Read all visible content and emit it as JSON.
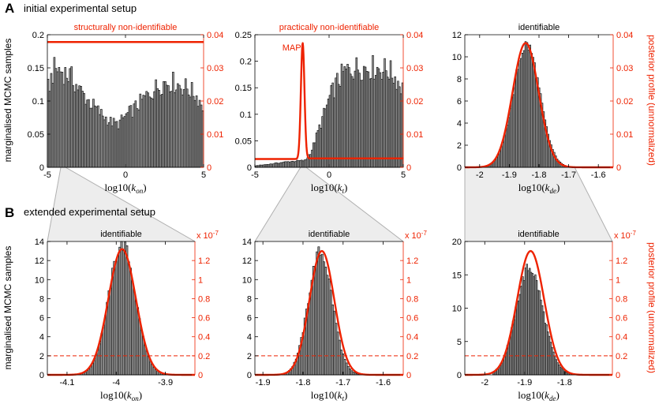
{
  "figure": {
    "sections": [
      {
        "letter": "A",
        "caption": "initial experimental setup"
      },
      {
        "letter": "B",
        "caption": "extended experimental setup"
      }
    ],
    "left_ylabel": "marginalised MCMC samples",
    "right_ylabel": "posterior profile (unnormalized)",
    "map_label": "MAP",
    "colors": {
      "bars_fill": "#9a9a9a",
      "bars_edge": "#000000",
      "profile": "#ee2200",
      "zoom_fill": "#ededed",
      "zoom_edge": "#b0b0b0"
    }
  },
  "chart_data": [
    {
      "id": "A1",
      "type": "bar+line",
      "title": "structurally non-identifiable",
      "title_color": "#ee2200",
      "xlabel_prefix": "log10(",
      "xlabel_var": "k",
      "xlabel_sub": "on",
      "xlabel_suffix": ")",
      "xlim": [
        -5,
        5
      ],
      "xticks": [
        "-5",
        "0",
        "5"
      ],
      "ylim": [
        0,
        0.2
      ],
      "yticks": [
        "0",
        "0.05",
        "0.1",
        "0.15",
        "0.2"
      ],
      "y2lim": [
        0,
        0.04
      ],
      "y2ticks": [
        "0",
        "0.01",
        "0.02",
        "0.03",
        "0.04"
      ],
      "histogram": {
        "nbins": 100,
        "range": [
          -5,
          5
        ],
        "peak_heights": [
          [
            -4.95,
            0.12
          ],
          [
            -4.6,
            0.148
          ],
          [
            -4.4,
            0.15
          ],
          [
            -4.0,
            0.146
          ],
          [
            -3.5,
            0.138
          ],
          [
            -3.0,
            0.12
          ],
          [
            -2.5,
            0.105
          ],
          [
            -2.0,
            0.092
          ],
          [
            -1.5,
            0.08
          ],
          [
            -1.0,
            0.07
          ],
          [
            -0.5,
            0.065
          ],
          [
            0.0,
            0.078
          ],
          [
            0.5,
            0.088
          ],
          [
            1.0,
            0.1
          ],
          [
            1.5,
            0.112
          ],
          [
            2.0,
            0.122
          ],
          [
            2.5,
            0.13
          ],
          [
            3.0,
            0.13
          ],
          [
            3.5,
            0.125
          ],
          [
            4.0,
            0.12
          ],
          [
            4.5,
            0.11
          ],
          [
            4.95,
            0.095
          ]
        ]
      },
      "profile": {
        "x": [
          -5,
          5
        ],
        "y": [
          0.0378,
          0.0378
        ]
      }
    },
    {
      "id": "A2",
      "type": "bar+line",
      "title": "practically non-identifiable",
      "title_color": "#ee2200",
      "xlabel_prefix": "log10(",
      "xlabel_var": "k",
      "xlabel_sub": "t",
      "xlabel_suffix": ")",
      "xlim": [
        -5,
        5
      ],
      "xticks": [
        "-5",
        "0",
        "5"
      ],
      "ylim": [
        0,
        0.25
      ],
      "yticks": [
        "0",
        "0.05",
        "0.1",
        "0.15",
        "0.2",
        "0.25"
      ],
      "y2lim": [
        0,
        0.04
      ],
      "y2ticks": [
        "0",
        "0.01",
        "0.02",
        "0.03",
        "0.04"
      ],
      "histogram": {
        "nbins": 100,
        "range": [
          -5,
          5
        ],
        "peak_heights": [
          [
            -4.95,
            0.003
          ],
          [
            -4.0,
            0.006
          ],
          [
            -3.0,
            0.01
          ],
          [
            -2.2,
            0.012
          ],
          [
            -1.6,
            0.013
          ],
          [
            -1.2,
            0.03
          ],
          [
            -0.6,
            0.08
          ],
          [
            0.0,
            0.13
          ],
          [
            0.5,
            0.16
          ],
          [
            1.0,
            0.18
          ],
          [
            1.5,
            0.188
          ],
          [
            2.0,
            0.19
          ],
          [
            2.5,
            0.19
          ],
          [
            3.0,
            0.19
          ],
          [
            3.5,
            0.188
          ],
          [
            4.0,
            0.185
          ],
          [
            4.5,
            0.17
          ],
          [
            4.95,
            0.15
          ]
        ]
      },
      "profile": {
        "baseline": 0.0025,
        "tail_level": 0.0027,
        "spike_x": -1.78,
        "spike_peak": 0.0375,
        "spike_width": 0.12
      }
    },
    {
      "id": "A3",
      "type": "bar+line",
      "title": "identifiable",
      "title_color": "#000000",
      "xlabel_prefix": "log10(",
      "xlabel_var": "k",
      "xlabel_sub": "de",
      "xlabel_suffix": ")",
      "xlim": [
        -2.05,
        -1.55
      ],
      "xticks": [
        "-2",
        "-1.9",
        "-1.8",
        "-1.7",
        "-1.6"
      ],
      "ylim": [
        0,
        12
      ],
      "yticks": [
        "0",
        "2",
        "4",
        "6",
        "8",
        "10",
        "12"
      ],
      "y2lim": [
        0,
        0.04
      ],
      "y2ticks": [
        "0",
        "0.01",
        "0.02",
        "0.03",
        "0.04"
      ],
      "histogram": {
        "nbins": 65,
        "range": [
          -2.0,
          -1.67
        ],
        "gauss_mean": -1.842,
        "gauss_sd": 0.045,
        "gauss_peak": 11.2
      },
      "profile": {
        "gauss_mean": -1.845,
        "gauss_sd": 0.044,
        "gauss_peak": 0.0375
      }
    },
    {
      "id": "B1",
      "type": "bar+line",
      "title": "identifiable",
      "title_color": "#000000",
      "xlabel_prefix": "log10(",
      "xlabel_var": "k",
      "xlabel_sub": "on",
      "xlabel_suffix": ")",
      "xlim": [
        -4.14,
        -3.84
      ],
      "xticks": [
        "-4.1",
        "-4",
        "-3.9"
      ],
      "ylim": [
        0,
        14
      ],
      "yticks": [
        "0",
        "2",
        "4",
        "6",
        "8",
        "10",
        "12",
        "14"
      ],
      "y2lim": [
        0,
        1.4
      ],
      "y2ticks": [
        "0",
        "0.2",
        "0.4",
        "0.6",
        "0.8",
        "1",
        "1.2"
      ],
      "y2_multiplier": "x 10",
      "y2_exponent": "-7",
      "dashed_y2": 0.2,
      "histogram": {
        "nbins": 60,
        "range": [
          -4.09,
          -3.87
        ],
        "gauss_mean": -3.988,
        "gauss_sd": 0.027,
        "gauss_peak": 13.9
      },
      "profile": {
        "gauss_mean": -3.988,
        "gauss_sd": 0.028,
        "gauss_peak": 1.32
      }
    },
    {
      "id": "B2",
      "type": "bar+line",
      "title": "identifiable",
      "title_color": "#000000",
      "xlabel_prefix": "log10(",
      "xlabel_var": "k",
      "xlabel_sub": "t",
      "xlabel_suffix": ")",
      "xlim": [
        -1.92,
        -1.55
      ],
      "xticks": [
        "-1.9",
        "-1.8",
        "-1.7",
        "-1.6"
      ],
      "ylim": [
        0,
        14
      ],
      "yticks": [
        "0",
        "2",
        "4",
        "6",
        "8",
        "10",
        "12",
        "14"
      ],
      "y2lim": [
        0,
        1.4
      ],
      "y2ticks": [
        "0",
        "0.2",
        "0.4",
        "0.6",
        "0.8",
        "1",
        "1.2"
      ],
      "y2_multiplier": "x 10",
      "y2_exponent": "-7",
      "dashed_y2": 0.2,
      "histogram": {
        "nbins": 60,
        "range": [
          -1.88,
          -1.62
        ],
        "gauss_mean": -1.757,
        "gauss_sd": 0.03,
        "gauss_peak": 13.0
      },
      "profile": {
        "gauss_mean": -1.753,
        "gauss_sd": 0.031,
        "gauss_peak": 1.3
      }
    },
    {
      "id": "B3",
      "type": "bar+line",
      "title": "identifiable",
      "title_color": "#000000",
      "xlabel_prefix": "log10(",
      "xlabel_var": "k",
      "xlabel_sub": "de",
      "xlabel_suffix": ")",
      "xlim": [
        -2.05,
        -1.68
      ],
      "xticks": [
        "-2",
        "-1.9",
        "-1.8"
      ],
      "ylim": [
        0,
        20
      ],
      "yticks": [
        "0",
        "5",
        "10",
        "15",
        "20"
      ],
      "y2lim": [
        0,
        1.4
      ],
      "y2ticks": [
        "0",
        "0.2",
        "0.4",
        "0.6",
        "0.8",
        "1",
        "1.2"
      ],
      "y2_multiplier": "x 10",
      "y2_exponent": "-7",
      "dashed_y2": 0.2,
      "histogram": {
        "nbins": 60,
        "range": [
          -1.98,
          -1.77
        ],
        "gauss_mean": -1.888,
        "gauss_sd": 0.034,
        "gauss_peak": 16.2
      },
      "profile": {
        "gauss_mean": -1.885,
        "gauss_sd": 0.034,
        "gauss_peak": 1.3
      }
    }
  ]
}
